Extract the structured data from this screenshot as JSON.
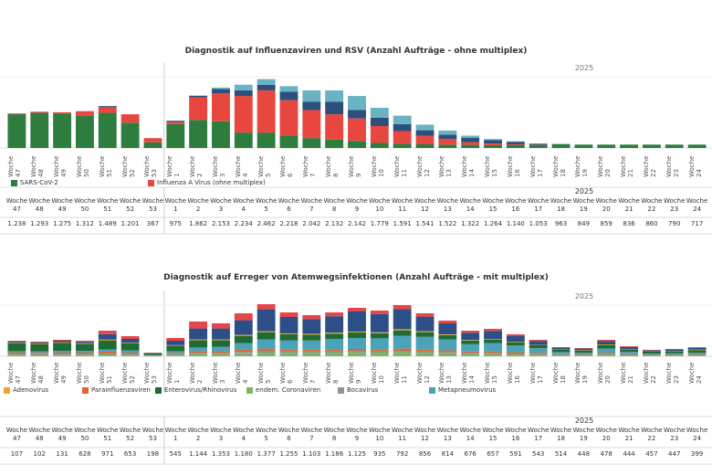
{
  "chart_data": [
    {
      "type": "bar",
      "stacked": true,
      "title": "Diagnostik auf Influenzaviren und RSV (Anzahl Aufträge - ohne multiplex)",
      "year_label": "2025",
      "categories": [
        "Woche 47",
        "Woche 48",
        "Woche 49",
        "Woche 50",
        "Woche 51",
        "Woche 52",
        "Woche 53",
        "Woche 1",
        "Woche 2",
        "Woche 3",
        "Woche 4",
        "Woche 5",
        "Woche 6",
        "Woche 7",
        "Woche 8",
        "Woche 9",
        "Woche 10",
        "Woche 11",
        "Woche 12",
        "Woche 13",
        "Woche 14",
        "Woche 15",
        "Woche 16",
        "Woche 17",
        "Woche 18",
        "Woche 19",
        "Woche 20",
        "Woche 21",
        "Woche 22",
        "Woche 23",
        "Woche 24"
      ],
      "ylim": [
        0,
        2600
      ],
      "series": [
        {
          "name": "SARS-CoV-2",
          "color": "#2e7d3e",
          "values": [
            1200,
            1250,
            1230,
            1150,
            1250,
            900,
            200,
            850,
            1000,
            950,
            550,
            550,
            450,
            350,
            300,
            250,
            180,
            150,
            130,
            120,
            110,
            100,
            100,
            100,
            130,
            120,
            120,
            120,
            120,
            120,
            120
          ]
        },
        {
          "name": "Influenza A Virus (ohne multiplex)",
          "color": "#e8473f",
          "values": [
            30,
            40,
            40,
            160,
            200,
            300,
            150,
            80,
            800,
            1000,
            1300,
            1500,
            1250,
            1000,
            900,
            800,
            600,
            450,
            300,
            200,
            100,
            60,
            30,
            10,
            0,
            0,
            0,
            0,
            0,
            0,
            0
          ]
        },
        {
          "color": "#2c4f7c",
          "values": [
            0,
            0,
            0,
            0,
            40,
            0,
            0,
            40,
            60,
            150,
            200,
            200,
            300,
            300,
            450,
            300,
            300,
            250,
            200,
            150,
            150,
            120,
            90,
            40,
            10,
            0,
            0,
            0,
            0,
            0,
            0
          ]
        },
        {
          "color": "#6bb3c4",
          "values": [
            0,
            0,
            0,
            0,
            0,
            0,
            0,
            0,
            0,
            50,
            200,
            200,
            200,
            400,
            400,
            500,
            350,
            300,
            200,
            150,
            80,
            40,
            20,
            10,
            0,
            0,
            0,
            0,
            0,
            0,
            0
          ]
        }
      ]
    },
    {
      "type": "bar",
      "stacked": true,
      "title": "Diagnostik auf Erreger von Atemwegsinfektionen (Anzahl Aufträge - mit multiplex)",
      "year_label": "2025",
      "categories": [
        "Woche 47",
        "Woche 48",
        "Woche 49",
        "Woche 50",
        "Woche 51",
        "Woche 52",
        "Woche 53",
        "Woche 1",
        "Woche 2",
        "Woche 3",
        "Woche 4",
        "Woche 5",
        "Woche 6",
        "Woche 7",
        "Woche 8",
        "Woche 9",
        "Woche 10",
        "Woche 11",
        "Woche 12",
        "Woche 13",
        "Woche 14",
        "Woche 15",
        "Woche 16",
        "Woche 17",
        "Woche 18",
        "Woche 19",
        "Woche 20",
        "Woche 21",
        "Woche 22",
        "Woche 23",
        "Woche 24"
      ],
      "ylim": [
        0,
        1500
      ],
      "series": [
        {
          "name": "endem. Coronaviren",
          "color": "#7cb861",
          "values": [
            40,
            35,
            40,
            40,
            50,
            40,
            10,
            40,
            60,
            60,
            80,
            100,
            90,
            90,
            100,
            110,
            100,
            110,
            90,
            80,
            60,
            60,
            50,
            40,
            20,
            20,
            40,
            25,
            15,
            15,
            20
          ]
        },
        {
          "name": "Bocavirus",
          "color": "#8a949c",
          "values": [
            20,
            20,
            20,
            20,
            25,
            20,
            5,
            20,
            30,
            30,
            40,
            50,
            40,
            40,
            40,
            40,
            40,
            40,
            40,
            30,
            30,
            30,
            25,
            20,
            15,
            10,
            20,
            15,
            10,
            10,
            10
          ]
        },
        {
          "name": "Parainfluenzaviren",
          "color": "#d9693a",
          "values": [
            40,
            40,
            40,
            40,
            50,
            40,
            10,
            30,
            50,
            50,
            60,
            60,
            50,
            50,
            50,
            50,
            50,
            60,
            50,
            50,
            40,
            40,
            40,
            30,
            20,
            20,
            30,
            20,
            15,
            15,
            20
          ]
        },
        {
          "name": "Metapneumovirus",
          "color": "#4aa3b8",
          "values": [
            40,
            40,
            50,
            50,
            60,
            60,
            10,
            50,
            100,
            120,
            180,
            250,
            250,
            250,
            280,
            300,
            300,
            350,
            350,
            300,
            200,
            230,
            180,
            130,
            60,
            50,
            120,
            60,
            30,
            40,
            50
          ]
        },
        {
          "name": "Enterovirus/Rhinovirus",
          "color": "#1f6b35",
          "values": [
            220,
            200,
            220,
            190,
            250,
            200,
            40,
            150,
            200,
            180,
            200,
            200,
            170,
            160,
            150,
            150,
            140,
            150,
            130,
            120,
            100,
            100,
            90,
            80,
            60,
            60,
            100,
            70,
            60,
            60,
            70
          ]
        },
        {
          "name": "Adenovirus",
          "color": "#f2a52b",
          "values": [
            15,
            15,
            15,
            15,
            20,
            15,
            5,
            15,
            20,
            20,
            25,
            25,
            25,
            25,
            25,
            25,
            25,
            30,
            25,
            20,
            15,
            15,
            15,
            10,
            10,
            10,
            15,
            10,
            5,
            10,
            10
          ]
        },
        {
          "color": "#2d4f87",
          "values": [
            30,
            30,
            40,
            40,
            150,
            100,
            10,
            120,
            300,
            300,
            400,
            600,
            450,
            400,
            450,
            550,
            500,
            550,
            400,
            300,
            200,
            220,
            160,
            110,
            50,
            40,
            90,
            55,
            30,
            35,
            50
          ]
        },
        {
          "color": "#e6454a",
          "values": [
            20,
            20,
            25,
            30,
            95,
            75,
            10,
            75,
            190,
            140,
            190,
            140,
            125,
            110,
            105,
            100,
            95,
            110,
            90,
            75,
            55,
            55,
            40,
            30,
            15,
            15,
            35,
            20,
            10,
            15,
            20
          ]
        }
      ]
    }
  ],
  "tables": [
    {
      "year_label": "2025",
      "values": [
        "1.238",
        "1.293",
        "1.275",
        "1.312",
        "1.489",
        "1.201",
        "367",
        "975",
        "1.862",
        "2.153",
        "2.234",
        "2.462",
        "2.218",
        "2.042",
        "2.132",
        "2.142",
        "1.779",
        "1.591",
        "1.541",
        "1.522",
        "1.322",
        "1.264",
        "1.140",
        "1.053",
        "963",
        "849",
        "859",
        "836",
        "860",
        "790",
        "717"
      ]
    },
    {
      "year_label": "2025",
      "values": [
        "107",
        "102",
        "131",
        "628",
        "971",
        "653",
        "198",
        "545",
        "1.144",
        "1.353",
        "1.180",
        "1.377",
        "1.255",
        "1.103",
        "1.186",
        "1.125",
        "935",
        "792",
        "856",
        "814",
        "676",
        "657",
        "591",
        "543",
        "514",
        "448",
        "478",
        "444",
        "457",
        "447",
        "399"
      ]
    }
  ]
}
